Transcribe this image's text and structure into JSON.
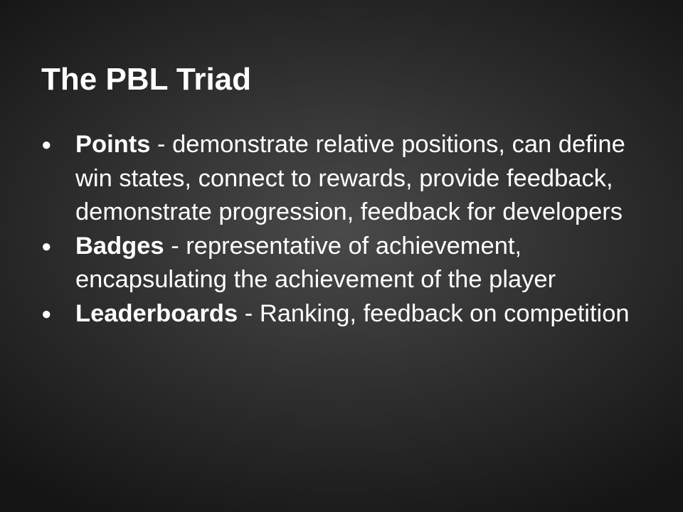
{
  "slide": {
    "title": "The PBL Triad",
    "bullets": [
      {
        "term": "Points",
        "text": " - demonstrate relative positions, can define win states, connect to rewards, provide feedback, demonstrate progression, feedback for developers"
      },
      {
        "term": "Badges",
        "text": " - representative of achievement, encapsulating the achievement of the player"
      },
      {
        "term": "Leaderboards",
        "text": " - Ranking, feedback on competition"
      }
    ],
    "bullet_glyph": "●"
  }
}
